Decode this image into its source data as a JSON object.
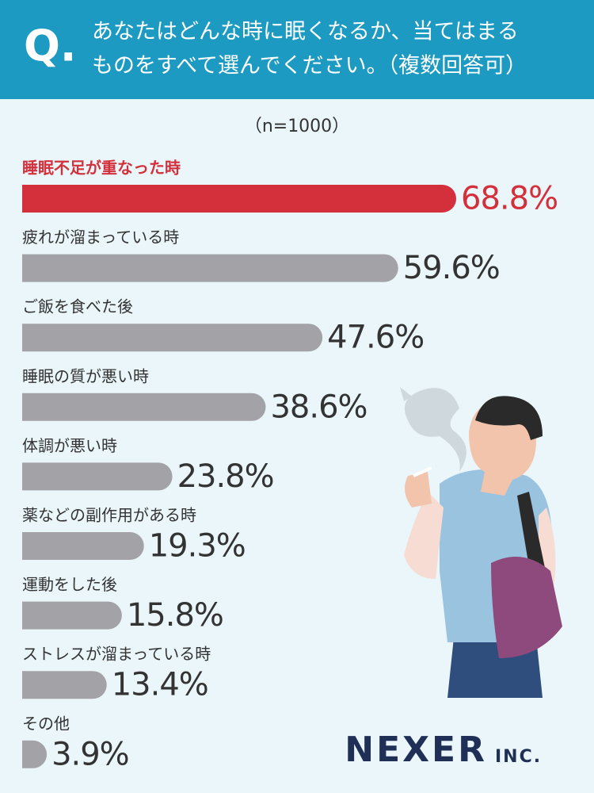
{
  "chart_data": {
    "type": "bar",
    "question_label": "Q.",
    "title_lines": [
      "あなたはどんな時に眠くなるか、当てはまる",
      "ものをすべて選んでください。（複数回答可）"
    ],
    "subtitle": "（n=1000）",
    "categories": [
      "睡眠不足が重なった時",
      "疲れが溜まっている時",
      "ご飯を食べた後",
      "睡眠の質が悪い時",
      "体調が悪い時",
      "薬などの副作用がある時",
      "運動をした後",
      "ストレスが溜まっている時",
      "その他"
    ],
    "values": [
      68.8,
      59.6,
      47.6,
      38.6,
      23.8,
      19.3,
      15.8,
      13.4,
      3.9
    ],
    "value_labels": [
      "68.8%",
      "59.6%",
      "47.6%",
      "38.6%",
      "23.8%",
      "19.3%",
      "15.8%",
      "13.4%",
      "3.9%"
    ],
    "colors": [
      "#d3303c",
      "#a2a2a7",
      "#a2a2a7",
      "#a2a2a7",
      "#a2a2a7",
      "#a2a2a7",
      "#a2a2a7",
      "#a2a2a7",
      "#a2a2a7"
    ],
    "brand": "NEXER",
    "brand_suffix": "INC."
  }
}
